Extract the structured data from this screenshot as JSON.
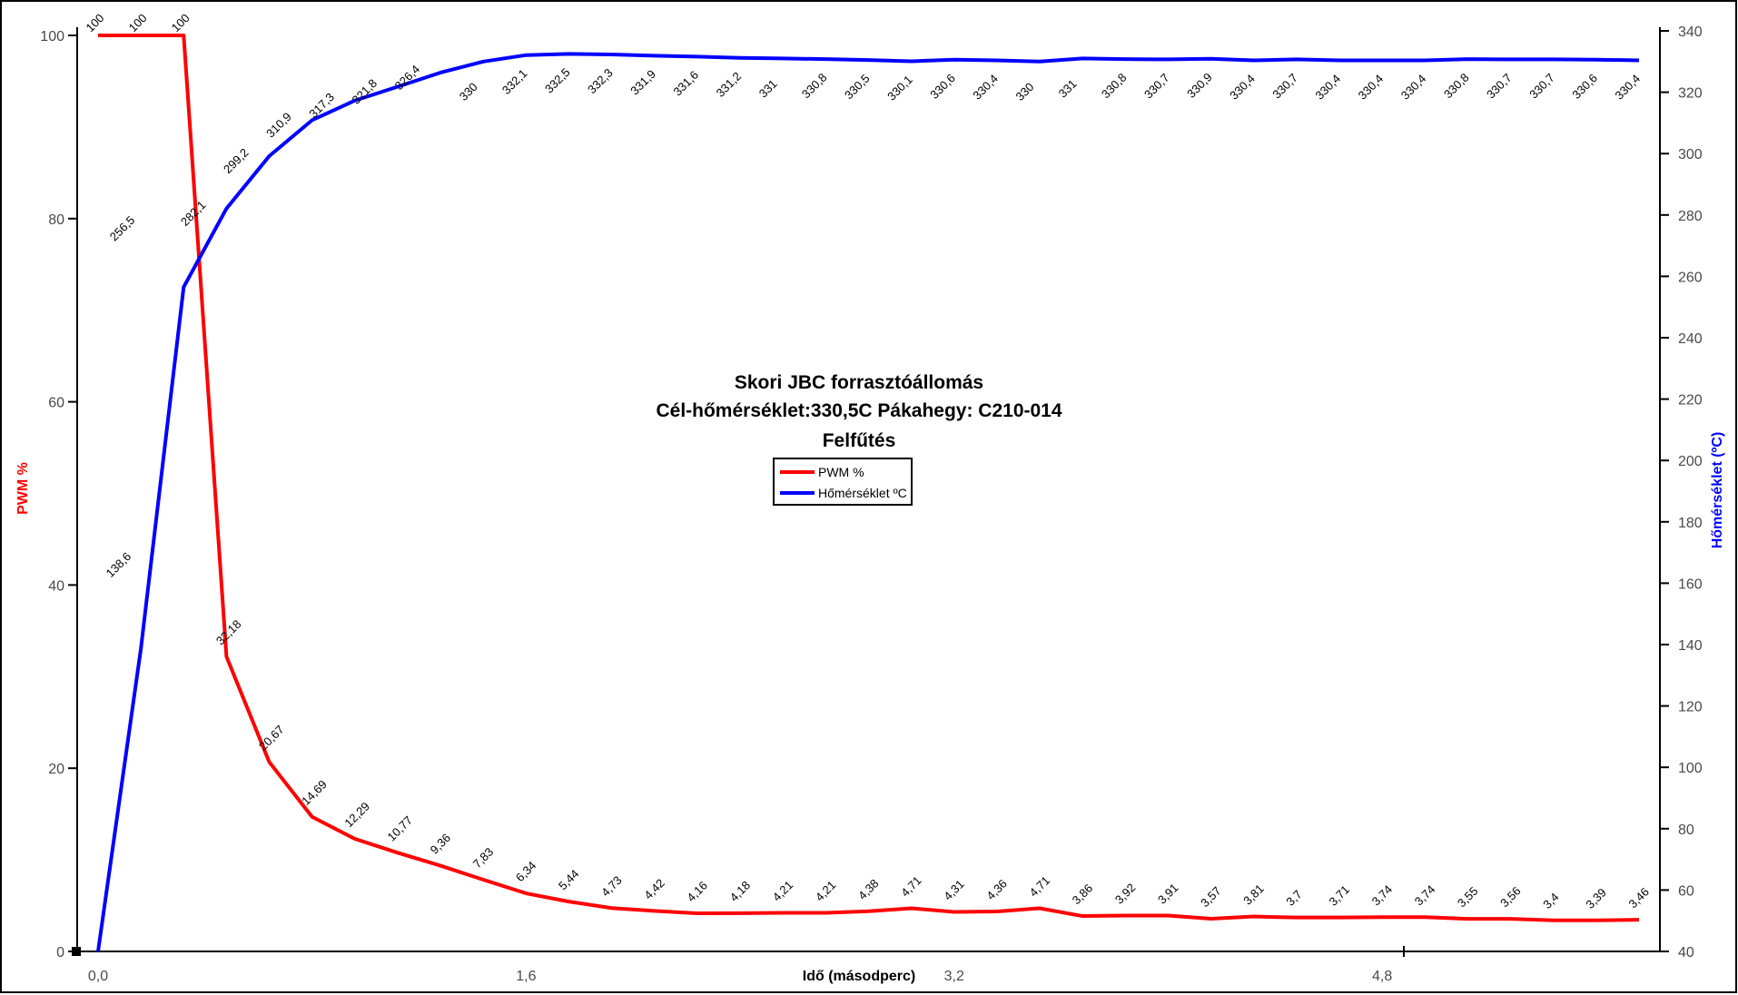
{
  "window": {
    "background": "#ffffff",
    "frame_color": "#000000"
  },
  "title": {
    "line1": "Skori JBC forrasztóállomás",
    "line2": "Cél-hőmérséklet:330,5C Pákahegy: C210-014",
    "line3": "Felfűtés"
  },
  "legend": {
    "items": [
      {
        "label": "PWM %",
        "color": "#ff0000"
      },
      {
        "label": "Hőmérséklet ºC",
        "color": "#0000ff"
      }
    ]
  },
  "axes": {
    "left": {
      "title": "PWM %",
      "color": "#ff0000",
      "ticks": [
        "0",
        "20",
        "40",
        "60",
        "80",
        "100"
      ],
      "range": [
        0,
        100
      ]
    },
    "right": {
      "title": "Hőmérséklet (ºC)",
      "color": "#0000ff",
      "ticks": [
        "40",
        "60",
        "80",
        "100",
        "120",
        "140",
        "160",
        "180",
        "200",
        "220",
        "240",
        "260",
        "280",
        "300",
        "320",
        "340"
      ],
      "range": [
        40,
        340
      ]
    },
    "x": {
      "title": "Idő (másodperc)",
      "tick_labels": [
        "0,0",
        "1,6",
        "3,2",
        "4,8"
      ],
      "tick_point_indexes": [
        0,
        10,
        20,
        30
      ]
    }
  },
  "chart_data": {
    "type": "line",
    "x_interval_seconds": 0.16,
    "x_range_seconds": [
      0.0,
      5.76
    ],
    "grid": "off",
    "legend_position": "center-below-title",
    "series": [
      {
        "name": "PWM %",
        "color": "#ff0000",
        "axis": "left",
        "values": [
          100,
          100,
          100,
          32.18,
          20.67,
          14.69,
          12.29,
          10.77,
          9.36,
          7.83,
          6.34,
          5.44,
          4.73,
          4.42,
          4.16,
          4.18,
          4.21,
          4.21,
          4.38,
          4.71,
          4.31,
          4.36,
          4.71,
          3.86,
          3.92,
          3.91,
          3.57,
          3.81,
          3.7,
          3.71,
          3.74,
          3.74,
          3.55,
          3.56,
          3.4,
          3.39,
          3.46
        ],
        "labels": [
          "100",
          "100",
          "100",
          "32,18",
          "20,67",
          "14,69",
          "12,29",
          "10,77",
          "9,36",
          "7,83",
          "6,34",
          "5,44",
          "4,73",
          "4,42",
          "4,16",
          "4,18",
          "4,21",
          "4,21",
          "4,38",
          "4,71",
          "4,31",
          "4,36",
          "4,71",
          "3,86",
          "3,92",
          "3,91",
          "3,57",
          "3,81",
          "3,7",
          "3,71",
          "3,74",
          "3,74",
          "3,55",
          "3,56",
          "3,4",
          "3,39",
          "3,46"
        ]
      },
      {
        "name": "Hőmérséklet ºC",
        "color": "#0000ff",
        "axis": "right",
        "values": [
          40,
          138.6,
          256.5,
          282.1,
          299.2,
          310.9,
          317.3,
          321.8,
          326.4,
          330,
          332.1,
          332.5,
          332.3,
          331.9,
          331.6,
          331.2,
          331,
          330.8,
          330.5,
          330.1,
          330.6,
          330.4,
          330,
          331,
          330.8,
          330.7,
          330.9,
          330.4,
          330.7,
          330.4,
          330.4,
          330.4,
          330.8,
          330.7,
          330.7,
          330.6,
          330.4
        ],
        "labels": [
          "",
          "138,6",
          "256,5",
          "282,1",
          "299,2",
          "310,9",
          "317,3",
          "321,8",
          "326,4",
          "330",
          "332,1",
          "332,5",
          "332,3",
          "331,9",
          "331,6",
          "331,2",
          "331",
          "330,8",
          "330,5",
          "330,1",
          "330,6",
          "330,4",
          "330",
          "331",
          "330,8",
          "330,7",
          "330,9",
          "330,4",
          "330,7",
          "330,4",
          "330,4",
          "330,4",
          "330,8",
          "330,7",
          "330,7",
          "330,6",
          "330,4"
        ]
      }
    ]
  }
}
